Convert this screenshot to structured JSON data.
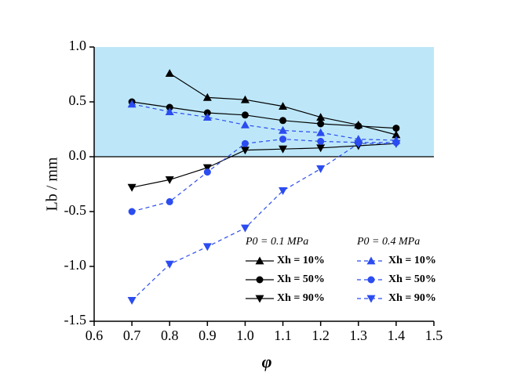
{
  "chart_data": {
    "type": "line",
    "xlabel": "φ",
    "ylabel": "Lb / mm",
    "x": [
      0.7,
      0.8,
      0.9,
      1.0,
      1.1,
      1.2,
      1.3,
      1.4
    ],
    "xlim": [
      0.6,
      1.5
    ],
    "xticks": [
      0.6,
      0.7,
      0.8,
      0.9,
      {
        "value": 1,
        "label": "1.0"
      },
      1.1,
      1.2,
      1.3,
      1.4,
      {
        "value": 1.5,
        "label": "1.5"
      }
    ],
    "ylim": [
      -1.5,
      1.0
    ],
    "yticks": [
      {
        "value": 1,
        "label": "1.0"
      },
      0.5,
      {
        "value": 0,
        "label": "0.0"
      },
      -0.5,
      {
        "value": -1,
        "label": "-1.0"
      },
      -1.5
    ],
    "shaded_region": [
      0,
      1.0
    ],
    "shade_color": "#bde7f9",
    "legend_titles": [
      "P0 = 0.1 MPa",
      "P0 = 0.4 MPa"
    ],
    "series": [
      {
        "name": "Xh = 10%",
        "color": "#000000",
        "marker": "triangle-up",
        "dashed": false,
        "values": [
          null,
          0.76,
          0.54,
          0.52,
          0.46,
          0.36,
          0.29,
          0.2
        ]
      },
      {
        "name": "Xh = 50%",
        "color": "#000000",
        "marker": "circle",
        "dashed": false,
        "values": [
          0.5,
          0.45,
          0.4,
          0.38,
          0.33,
          0.3,
          0.28,
          0.26
        ]
      },
      {
        "name": "Xh = 90%",
        "color": "#000000",
        "marker": "triangle-down",
        "dashed": false,
        "values": [
          -0.28,
          -0.21,
          -0.1,
          0.06,
          0.07,
          0.08,
          0.1,
          0.12
        ]
      },
      {
        "name": "Xh = 10%",
        "color": "#2b4cf0",
        "marker": "triangle-up",
        "dashed": true,
        "values": [
          0.48,
          0.41,
          0.36,
          0.29,
          0.24,
          0.22,
          0.16,
          0.15
        ]
      },
      {
        "name": "Xh = 50%",
        "color": "#2b4cf0",
        "marker": "circle",
        "dashed": true,
        "values": [
          -0.5,
          -0.41,
          -0.14,
          0.12,
          0.16,
          0.14,
          0.13,
          0.13
        ]
      },
      {
        "name": "Xh = 90%",
        "color": "#2b4cf0",
        "marker": "triangle-down",
        "dashed": true,
        "values": [
          -1.31,
          -0.98,
          -0.82,
          -0.65,
          -0.31,
          -0.11,
          0.12,
          0.12
        ]
      }
    ]
  }
}
